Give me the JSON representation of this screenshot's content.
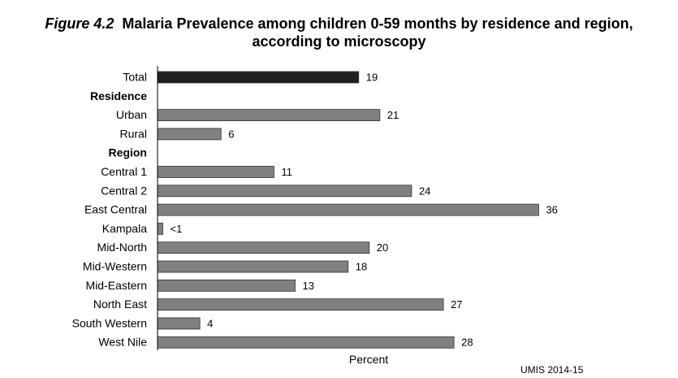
{
  "figure": {
    "label": "Figure 4.2",
    "title_line1": "Malaria Prevalence among children 0-59 months by residence and region,",
    "title_line2": "according to microscopy",
    "source": "UMIS 2014-15"
  },
  "chart_data": {
    "type": "bar",
    "orientation": "horizontal",
    "xlabel": "Percent",
    "ylabel": "",
    "xlim": [
      0,
      40
    ],
    "grid": false,
    "legend": "none",
    "colors": {
      "total": "#231f20",
      "default": "#808080",
      "bar_border": "#333333"
    },
    "rows": [
      {
        "label": "Total",
        "value": 19,
        "display": "19",
        "kind": "total"
      },
      {
        "label": "Residence",
        "kind": "header"
      },
      {
        "label": "Urban",
        "value": 21,
        "display": "21",
        "kind": "bar"
      },
      {
        "label": "Rural",
        "value": 6,
        "display": "6",
        "kind": "bar"
      },
      {
        "label": "Region",
        "kind": "header"
      },
      {
        "label": "Central 1",
        "value": 11,
        "display": "11",
        "kind": "bar"
      },
      {
        "label": "Central 2",
        "value": 24,
        "display": "24",
        "kind": "bar"
      },
      {
        "label": "East Central",
        "value": 36,
        "display": "36",
        "kind": "bar"
      },
      {
        "label": "Kampala",
        "value": 0.5,
        "display": "<1",
        "kind": "bar"
      },
      {
        "label": "Mid-North",
        "value": 20,
        "display": "20",
        "kind": "bar"
      },
      {
        "label": "Mid-Western",
        "value": 18,
        "display": "18",
        "kind": "bar"
      },
      {
        "label": "Mid-Eastern",
        "value": 13,
        "display": "13",
        "kind": "bar"
      },
      {
        "label": "North East",
        "value": 27,
        "display": "27",
        "kind": "bar"
      },
      {
        "label": "South Western",
        "value": 4,
        "display": "4",
        "kind": "bar"
      },
      {
        "label": "West Nile",
        "value": 28,
        "display": "28",
        "kind": "bar"
      }
    ]
  }
}
